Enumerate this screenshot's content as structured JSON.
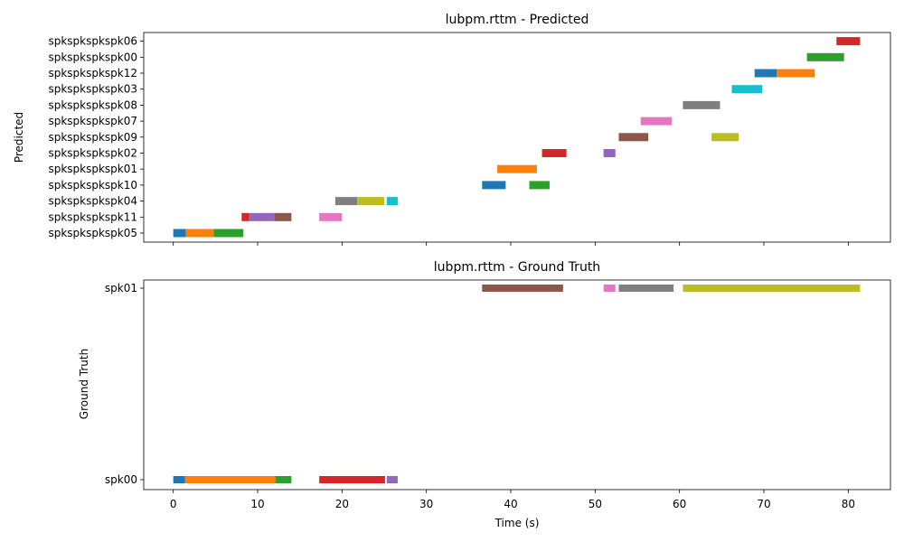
{
  "chart_data": [
    {
      "type": "timeline",
      "title": "lubpm.rttm - Predicted",
      "xlabel": "",
      "ylabel": "Predicted",
      "xlim": [
        -3.5,
        85
      ],
      "x_ticks": [
        "0",
        "10",
        "20",
        "30",
        "40",
        "50",
        "60",
        "70",
        "80"
      ],
      "x_tick_labels_shown": false,
      "categories": [
        "spkspkspkspk05",
        "spkspkspkspk11",
        "spkspkspkspk04",
        "spkspkspkspk10",
        "spkspkspkspk01",
        "spkspkspkspk02",
        "spkspkspkspk09",
        "spkspkspkspk07",
        "spkspkspkspk08",
        "spkspkspkspk03",
        "spkspkspkspk12",
        "spkspkspkspk00",
        "spkspkspkspk06"
      ],
      "segments": [
        {
          "category": "spkspkspkspk05",
          "start": 0.0,
          "end": 1.5,
          "color": "#1f77b4"
        },
        {
          "category": "spkspkspkspk05",
          "start": 1.5,
          "end": 4.8,
          "color": "#ff7f0e"
        },
        {
          "category": "spkspkspkspk05",
          "start": 4.8,
          "end": 8.3,
          "color": "#2ca02c"
        },
        {
          "category": "spkspkspkspk11",
          "start": 8.1,
          "end": 9.0,
          "color": "#d62728"
        },
        {
          "category": "spkspkspkspk11",
          "start": 9.0,
          "end": 12.0,
          "color": "#9467bd"
        },
        {
          "category": "spkspkspkspk11",
          "start": 12.0,
          "end": 14.0,
          "color": "#8c564b"
        },
        {
          "category": "spkspkspkspk11",
          "start": 17.3,
          "end": 20.0,
          "color": "#e377c2"
        },
        {
          "category": "spkspkspkspk04",
          "start": 19.2,
          "end": 21.8,
          "color": "#7f7f7f"
        },
        {
          "category": "spkspkspkspk04",
          "start": 21.8,
          "end": 25.0,
          "color": "#bcbd22"
        },
        {
          "category": "spkspkspkspk04",
          "start": 25.3,
          "end": 26.6,
          "color": "#17becf"
        },
        {
          "category": "spkspkspkspk10",
          "start": 36.6,
          "end": 39.4,
          "color": "#1f77b4"
        },
        {
          "category": "spkspkspkspk10",
          "start": 42.2,
          "end": 44.6,
          "color": "#2ca02c"
        },
        {
          "category": "spkspkspkspk01",
          "start": 38.4,
          "end": 43.1,
          "color": "#ff7f0e"
        },
        {
          "category": "spkspkspkspk02",
          "start": 43.7,
          "end": 46.6,
          "color": "#d62728"
        },
        {
          "category": "spkspkspkspk02",
          "start": 51.0,
          "end": 52.4,
          "color": "#9467bd"
        },
        {
          "category": "spkspkspkspk09",
          "start": 52.8,
          "end": 56.3,
          "color": "#8c564b"
        },
        {
          "category": "spkspkspkspk09",
          "start": 63.8,
          "end": 67.0,
          "color": "#bcbd22"
        },
        {
          "category": "spkspkspkspk07",
          "start": 55.4,
          "end": 59.1,
          "color": "#e377c2"
        },
        {
          "category": "spkspkspkspk08",
          "start": 60.4,
          "end": 64.8,
          "color": "#7f7f7f"
        },
        {
          "category": "spkspkspkspk03",
          "start": 66.2,
          "end": 69.8,
          "color": "#17becf"
        },
        {
          "category": "spkspkspkspk12",
          "start": 68.9,
          "end": 71.5,
          "color": "#1f77b4"
        },
        {
          "category": "spkspkspkspk12",
          "start": 71.5,
          "end": 76.0,
          "color": "#ff7f0e"
        },
        {
          "category": "spkspkspkspk00",
          "start": 75.1,
          "end": 79.5,
          "color": "#2ca02c"
        },
        {
          "category": "spkspkspkspk06",
          "start": 78.6,
          "end": 81.4,
          "color": "#d62728"
        }
      ]
    },
    {
      "type": "timeline",
      "title": "lubpm.rttm - Ground Truth",
      "xlabel": "Time (s)",
      "ylabel": "Ground Truth",
      "xlim": [
        -3.5,
        85
      ],
      "x_ticks": [
        "0",
        "10",
        "20",
        "30",
        "40",
        "50",
        "60",
        "70",
        "80"
      ],
      "x_tick_labels_shown": true,
      "categories": [
        "spk00",
        "spk01"
      ],
      "segments": [
        {
          "category": "spk00",
          "start": 0.0,
          "end": 1.4,
          "color": "#1f77b4"
        },
        {
          "category": "spk00",
          "start": 1.4,
          "end": 12.1,
          "color": "#ff7f0e"
        },
        {
          "category": "spk00",
          "start": 12.1,
          "end": 14.0,
          "color": "#2ca02c"
        },
        {
          "category": "spk00",
          "start": 17.3,
          "end": 25.1,
          "color": "#d62728"
        },
        {
          "category": "spk00",
          "start": 25.3,
          "end": 26.6,
          "color": "#9467bd"
        },
        {
          "category": "spk01",
          "start": 36.6,
          "end": 46.2,
          "color": "#8c564b"
        },
        {
          "category": "spk01",
          "start": 51.0,
          "end": 52.4,
          "color": "#e377c2"
        },
        {
          "category": "spk01",
          "start": 52.8,
          "end": 59.3,
          "color": "#7f7f7f"
        },
        {
          "category": "spk01",
          "start": 60.4,
          "end": 81.4,
          "color": "#bcbd22"
        }
      ]
    }
  ]
}
